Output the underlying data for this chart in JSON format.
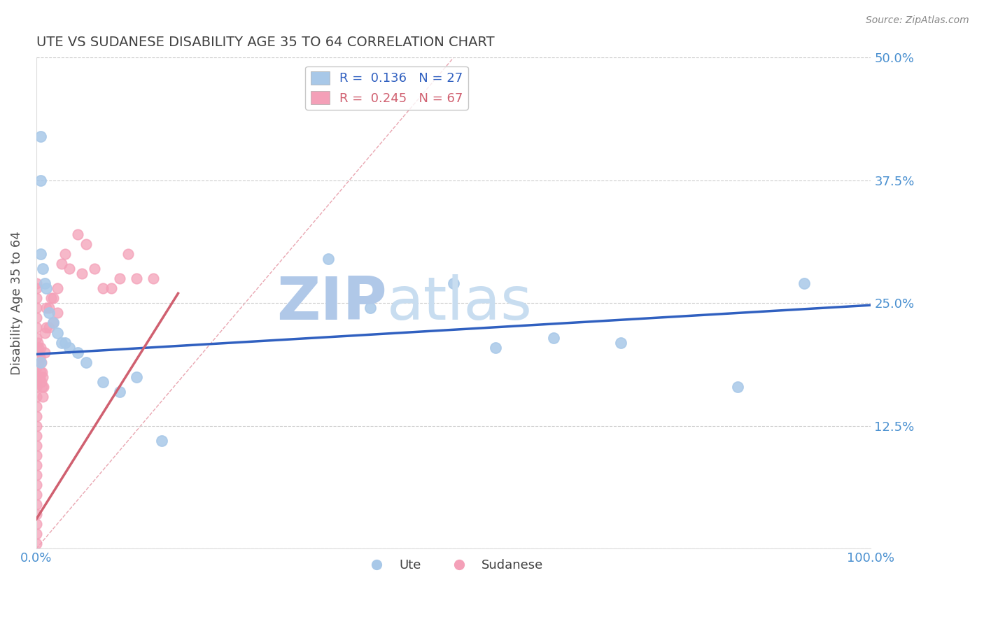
{
  "title": "UTE VS SUDANESE DISABILITY AGE 35 TO 64 CORRELATION CHART",
  "source_text": "Source: ZipAtlas.com",
  "ylabel": "Disability Age 35 to 64",
  "xlim": [
    0.0,
    1.0
  ],
  "ylim": [
    0.0,
    0.5
  ],
  "yticks": [
    0.0,
    0.125,
    0.25,
    0.375,
    0.5
  ],
  "ytick_labels": [
    "",
    "12.5%",
    "25.0%",
    "37.5%",
    "50.0%"
  ],
  "xticks": [
    0.0,
    0.25,
    0.5,
    0.75,
    1.0
  ],
  "xtick_labels": [
    "0.0%",
    "",
    "",
    "",
    "100.0%"
  ],
  "ute_color": "#a8c8e8",
  "sudanese_color": "#f4a0b8",
  "ute_line_color": "#3060c0",
  "sudanese_line_color": "#d06070",
  "title_color": "#404040",
  "axis_label_color": "#505050",
  "tick_color": "#4a90d0",
  "grid_color": "#cccccc",
  "watermark_text": "ZIPatlas",
  "watermark_color": "#c8ddf0",
  "background_color": "#ffffff",
  "legend_ute_r": "0.136",
  "legend_ute_n": "27",
  "legend_sudanese_r": "0.245",
  "legend_sudanese_n": "67",
  "ute_scatter_x": [
    0.005,
    0.005,
    0.005,
    0.008,
    0.01,
    0.012,
    0.015,
    0.02,
    0.025,
    0.03,
    0.035,
    0.04,
    0.05,
    0.06,
    0.08,
    0.1,
    0.12,
    0.15,
    0.35,
    0.4,
    0.5,
    0.55,
    0.62,
    0.7,
    0.84,
    0.92,
    0.005
  ],
  "ute_scatter_y": [
    0.42,
    0.375,
    0.3,
    0.285,
    0.27,
    0.265,
    0.24,
    0.23,
    0.22,
    0.21,
    0.21,
    0.205,
    0.2,
    0.19,
    0.17,
    0.16,
    0.175,
    0.11,
    0.295,
    0.245,
    0.27,
    0.205,
    0.215,
    0.21,
    0.165,
    0.27,
    0.19
  ],
  "sudanese_scatter_x": [
    0.0,
    0.0,
    0.0,
    0.0,
    0.0,
    0.0,
    0.0,
    0.0,
    0.0,
    0.0,
    0.0,
    0.0,
    0.0,
    0.0,
    0.0,
    0.0,
    0.0,
    0.0,
    0.0,
    0.0,
    0.0,
    0.0,
    0.0,
    0.0,
    0.0,
    0.0,
    0.0,
    0.0,
    0.002,
    0.002,
    0.003,
    0.003,
    0.004,
    0.004,
    0.005,
    0.005,
    0.006,
    0.006,
    0.007,
    0.007,
    0.008,
    0.008,
    0.009,
    0.01,
    0.01,
    0.012,
    0.012,
    0.015,
    0.015,
    0.018,
    0.02,
    0.02,
    0.025,
    0.025,
    0.03,
    0.035,
    0.04,
    0.05,
    0.055,
    0.06,
    0.07,
    0.08,
    0.09,
    0.1,
    0.11,
    0.12,
    0.14
  ],
  "sudanese_scatter_y": [
    0.265,
    0.255,
    0.245,
    0.235,
    0.225,
    0.215,
    0.205,
    0.195,
    0.185,
    0.175,
    0.165,
    0.155,
    0.145,
    0.135,
    0.125,
    0.115,
    0.105,
    0.095,
    0.085,
    0.075,
    0.065,
    0.055,
    0.045,
    0.035,
    0.025,
    0.015,
    0.005,
    0.27,
    0.21,
    0.195,
    0.205,
    0.19,
    0.195,
    0.175,
    0.205,
    0.18,
    0.19,
    0.17,
    0.18,
    0.165,
    0.175,
    0.155,
    0.165,
    0.22,
    0.2,
    0.245,
    0.225,
    0.245,
    0.225,
    0.255,
    0.255,
    0.23,
    0.265,
    0.24,
    0.29,
    0.3,
    0.285,
    0.32,
    0.28,
    0.31,
    0.285,
    0.265,
    0.265,
    0.275,
    0.3,
    0.275,
    0.275
  ],
  "ute_trend": [
    0.0,
    1.0,
    0.198,
    0.248
  ],
  "sudanese_trend": [
    0.0,
    0.17,
    0.03,
    0.26
  ],
  "diagonal": [
    0.0,
    0.5,
    0.0,
    0.5
  ]
}
